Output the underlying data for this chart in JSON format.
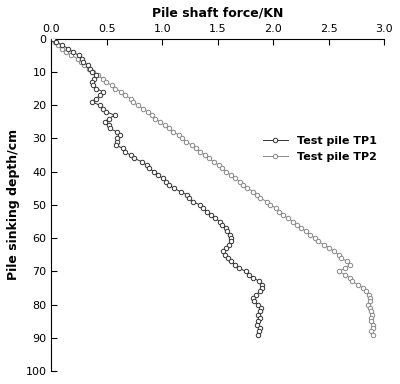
{
  "xlabel": "Pile shaft force/KN",
  "ylabel": "Pile sinking depth/cm",
  "xlim": [
    0.0,
    3.0
  ],
  "ylim": [
    100,
    0
  ],
  "xticks": [
    0.0,
    0.5,
    1.0,
    1.5,
    2.0,
    2.5,
    3.0
  ],
  "yticks": [
    0,
    10,
    20,
    30,
    40,
    50,
    60,
    70,
    80,
    90,
    100
  ],
  "legend1": "Test pile TP1",
  "legend2": "Test pile TP2",
  "tp1_color": "#333333",
  "tp2_color": "#888888",
  "tp1_force": [
    0.0,
    0.05,
    0.1,
    0.15,
    0.2,
    0.25,
    0.28,
    0.3,
    0.32,
    0.34,
    0.37,
    0.4,
    0.38,
    0.37,
    0.38,
    0.42,
    0.46,
    0.44,
    0.4,
    0.38,
    0.42,
    0.46,
    0.5,
    0.55,
    0.52,
    0.5,
    0.52,
    0.55,
    0.58,
    0.62,
    0.6,
    0.58,
    0.6,
    0.64,
    0.68,
    0.72,
    0.76,
    0.8,
    0.84,
    0.88,
    0.92,
    0.96,
    1.0,
    1.04,
    1.08,
    1.12,
    1.16,
    1.2,
    1.24,
    1.28,
    1.32,
    1.36,
    1.4,
    1.44,
    1.48,
    1.52,
    1.55,
    1.57,
    1.58,
    1.6,
    1.62,
    1.64,
    1.6,
    1.56,
    1.55,
    1.57,
    1.6,
    1.63,
    1.66,
    1.7,
    1.74,
    1.78,
    1.82,
    1.86,
    1.88,
    1.9,
    1.88,
    1.84,
    1.82,
    1.84,
    1.86,
    1.88,
    1.88,
    1.87,
    1.88,
    1.87,
    1.86,
    1.87,
    1.86,
    1.86
  ],
  "tp1_depth": [
    0,
    1,
    2,
    3,
    4,
    5,
    6,
    7,
    8,
    9,
    10,
    11,
    12,
    13,
    14,
    15,
    16,
    17,
    18,
    19,
    20,
    21,
    22,
    23,
    24,
    25,
    26,
    27,
    28,
    29,
    30,
    31,
    32,
    33,
    34,
    35,
    36,
    37,
    38,
    39,
    40,
    41,
    42,
    43,
    44,
    45,
    46,
    47,
    48,
    49,
    50,
    51,
    52,
    53,
    54,
    55,
    56,
    57,
    58,
    59,
    60,
    61,
    62,
    63,
    64,
    65,
    66,
    67,
    68,
    69,
    70,
    71,
    72,
    73,
    74,
    75,
    76,
    77,
    78,
    79,
    80,
    81,
    82,
    83,
    84,
    85,
    86,
    87,
    88,
    89
  ],
  "tp2_force": [
    0.0,
    0.03,
    0.06,
    0.1,
    0.14,
    0.18,
    0.22,
    0.26,
    0.3,
    0.34,
    0.38,
    0.42,
    0.46,
    0.5,
    0.54,
    0.58,
    0.62,
    0.66,
    0.7,
    0.74,
    0.78,
    0.82,
    0.86,
    0.9,
    0.94,
    0.98,
    1.02,
    1.06,
    1.1,
    1.14,
    1.18,
    1.22,
    1.26,
    1.3,
    1.34,
    1.38,
    1.42,
    1.46,
    1.5,
    1.54,
    1.58,
    1.62,
    1.66,
    1.7,
    1.74,
    1.78,
    1.82,
    1.86,
    1.9,
    1.94,
    1.98,
    2.02,
    2.06,
    2.1,
    2.14,
    2.18,
    2.22,
    2.26,
    2.3,
    2.34,
    2.38,
    2.42,
    2.46,
    2.5,
    2.54,
    2.58,
    2.62,
    2.66,
    2.68,
    2.64,
    2.6,
    2.64,
    2.68,
    2.72,
    2.76,
    2.8,
    2.84,
    2.86,
    2.88,
    2.88,
    2.86,
    2.87,
    2.88,
    2.88,
    2.89,
    2.88,
    2.89,
    2.89,
    2.89,
    2.89
  ],
  "tp2_depth": [
    0,
    1,
    2,
    3,
    4,
    5,
    6,
    7,
    8,
    9,
    10,
    11,
    12,
    13,
    14,
    15,
    16,
    17,
    18,
    19,
    20,
    21,
    22,
    23,
    24,
    25,
    26,
    27,
    28,
    29,
    30,
    31,
    32,
    33,
    34,
    35,
    36,
    37,
    38,
    39,
    40,
    41,
    42,
    43,
    44,
    45,
    46,
    47,
    48,
    49,
    50,
    51,
    52,
    53,
    54,
    55,
    56,
    57,
    58,
    59,
    60,
    61,
    62,
    63,
    64,
    65,
    66,
    67,
    68,
    69,
    70,
    71,
    72,
    73,
    74,
    75,
    76,
    77,
    78,
    79,
    80,
    81,
    82,
    83,
    84,
    85,
    86,
    87,
    88,
    89
  ]
}
